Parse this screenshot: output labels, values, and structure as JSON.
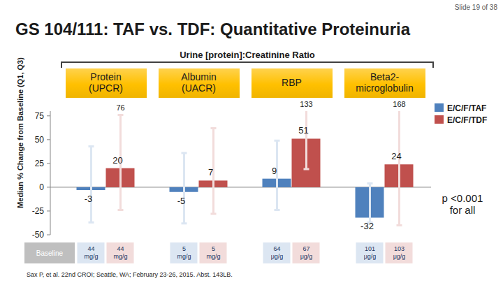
{
  "chart_data": {
    "type": "bar",
    "page_label": "Slide 19 of 38",
    "title": "GS 104/111: TAF vs. TDF: Quantitative Proteinuria",
    "subtitle": "Urine [protein]:Creatinine Ratio",
    "y_label": "Median % Change from Baseline (Q1, Q3)",
    "categories": [
      "Protein (UPCR)",
      "Albumin (UACR)",
      "RBP",
      "Beta2-microglobulin"
    ],
    "series": [
      {
        "name": "E/C/F/TAF",
        "color": "#4f81bd",
        "values": [
          -3,
          -5,
          9,
          -32
        ],
        "q1": [
          -37,
          -38,
          -24,
          -37
        ],
        "q3": [
          43,
          36,
          49,
          4
        ],
        "baseline_labels": [
          "44 mg/g",
          "5 mg/g",
          "64 μg/g",
          "101 μg/g"
        ]
      },
      {
        "name": "E/C/F/TDF",
        "color": "#c0504d",
        "values": [
          20,
          7,
          51,
          24
        ],
        "q1": [
          -24,
          -28,
          19,
          -40
        ],
        "q3": [
          76,
          62,
          133,
          168
        ],
        "q3_labels": [
          "76",
          null,
          "133",
          "168"
        ],
        "baseline_labels": [
          "44 mg/g",
          "5 mg/g",
          "67 μg/g",
          "103 μg/g"
        ]
      }
    ],
    "ylim": [
      -50,
      80
    ],
    "yticks": [
      -50,
      -25,
      0,
      25,
      50,
      75
    ],
    "grid": false,
    "legend": "top-right",
    "data_labels": true,
    "baseline_title": "Baseline",
    "annotation": "p <0.001 for all",
    "source": "Sax P, et al. 22nd CROI; Seattle, WA; February 23-26, 2015. Abst. 143LB."
  }
}
